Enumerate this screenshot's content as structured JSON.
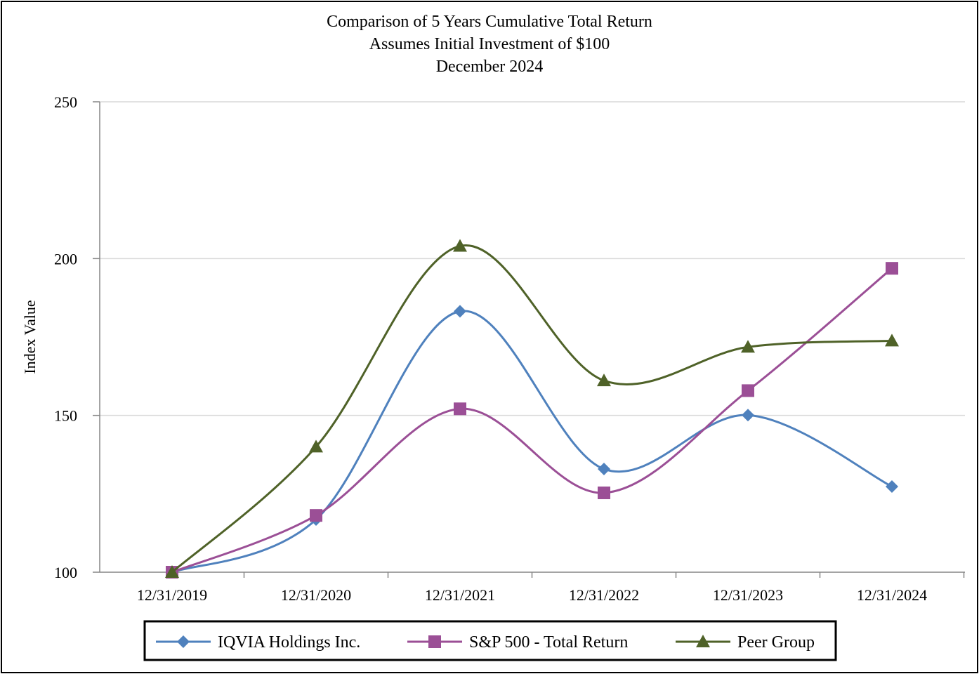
{
  "chart_data": {
    "type": "line",
    "title": [
      "Comparison of 5 Years Cumulative Total Return",
      "Assumes Initial Investment of $100",
      "December 2024"
    ],
    "xlabel": "",
    "ylabel": "Index Value",
    "ylim": [
      100,
      250
    ],
    "yticks": [
      "100",
      "150",
      "200",
      "250"
    ],
    "categories": [
      "12/31/2019",
      "12/31/2020",
      "12/31/2021",
      "12/31/2022",
      "12/31/2023",
      "12/31/2024"
    ],
    "grid": true,
    "legend_position": "bottom",
    "series": [
      {
        "name": "IQVIA Holdings Inc.",
        "color": "#4F81BD",
        "marker": "diamond",
        "values": [
          100,
          116.8,
          183.2,
          132.9,
          150.1,
          127.3
        ]
      },
      {
        "name": "S&P 500 - Total Return",
        "color": "#9B4F96",
        "marker": "square",
        "values": [
          100,
          118.1,
          152.1,
          125.3,
          157.9,
          196.9
        ]
      },
      {
        "name": "Peer Group",
        "color": "#4F6228",
        "marker": "triangle",
        "values": [
          100,
          140.0,
          204.0,
          161.1,
          171.8,
          173.8
        ]
      }
    ]
  }
}
